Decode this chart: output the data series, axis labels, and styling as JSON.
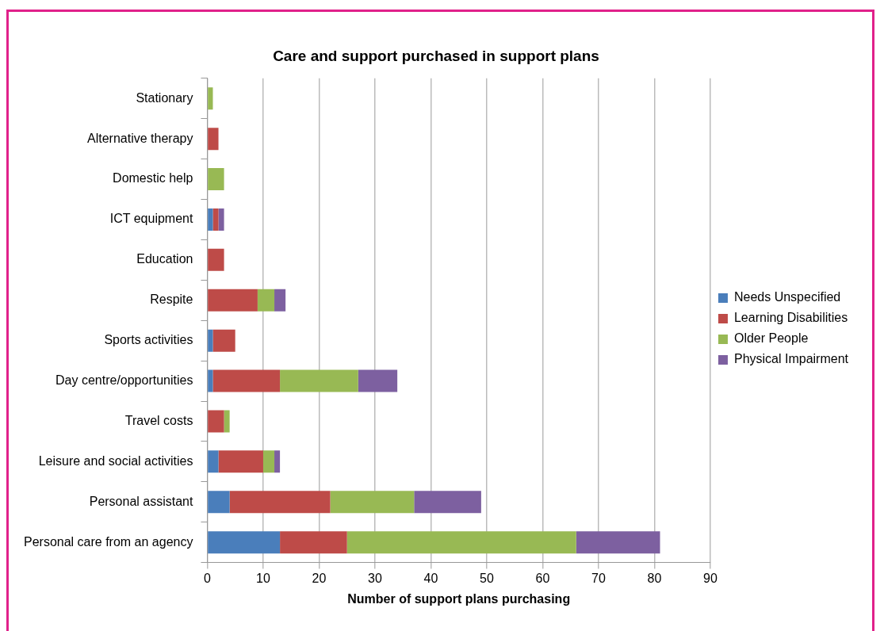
{
  "chart_data": {
    "type": "bar",
    "orientation": "horizontal",
    "stacked": true,
    "title": "Care and support purchased in support plans",
    "xlabel": "Number of support plans purchasing",
    "categories": [
      "Stationary",
      "Alternative therapy",
      "Domestic help",
      "ICT equipment",
      "Education",
      "Respite",
      "Sports activities",
      "Day centre/opportunities",
      "Travel costs",
      "Leisure and social activities",
      "Personal assistant",
      "Personal care from an agency"
    ],
    "series": [
      {
        "name": "Needs Unspecified",
        "color": "#4a7ebb",
        "values": [
          null,
          null,
          null,
          1,
          null,
          null,
          1,
          1,
          null,
          2,
          4,
          13
        ]
      },
      {
        "name": "Learning Disabilities",
        "color": "#be4b48",
        "values": [
          null,
          2,
          null,
          1,
          3,
          9,
          4,
          12,
          3,
          8,
          18,
          12
        ]
      },
      {
        "name": "Older People",
        "color": "#98b954",
        "values": [
          1,
          null,
          3,
          null,
          null,
          3,
          null,
          14,
          1,
          2,
          15,
          41
        ]
      },
      {
        "name": "Physical Impairment",
        "color": "#7d60a0",
        "values": [
          null,
          null,
          null,
          1,
          null,
          2,
          null,
          7,
          null,
          1,
          12,
          15
        ]
      }
    ],
    "xlim": [
      0,
      90
    ],
    "xticks": [
      0,
      10,
      20,
      30,
      40,
      50,
      60,
      70,
      80,
      90
    ],
    "grid": "x",
    "legend": "right"
  }
}
